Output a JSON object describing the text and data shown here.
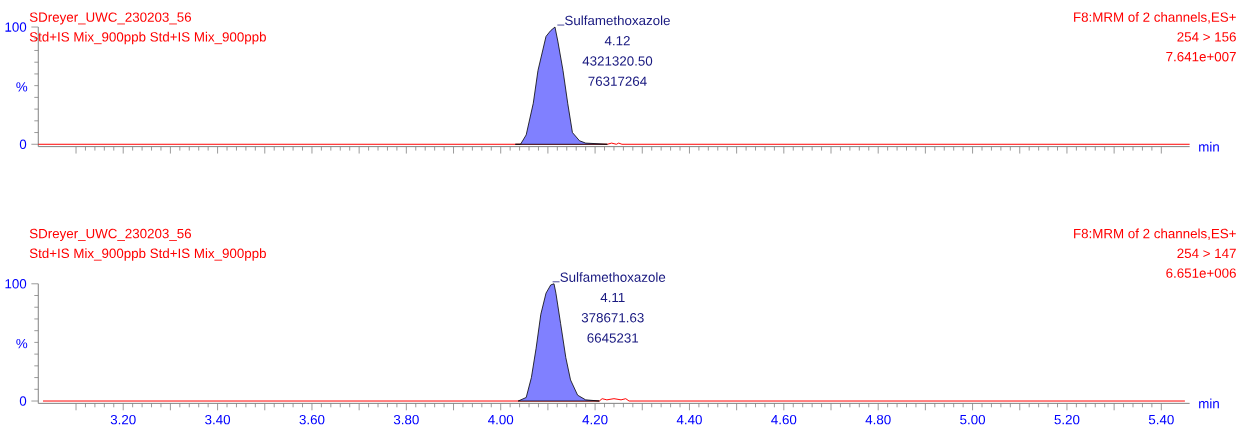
{
  "chart_data": [
    {
      "type": "area",
      "title": "SDreyer_UWC_230203_56",
      "subtitle": "Std+IS Mix_900ppb Std+IS Mix_900ppb",
      "xlabel": "min",
      "ylabel": "%",
      "tick_labels": "y",
      "annotations": [
        "F8:MRM of 2 channels,ES+",
        "254 > 156",
        "7.641e+007",
        {
          "text": "Sulfamethoxazole",
          "x": 4.12,
          "y": 100
        },
        "4.12",
        "4321320.50",
        "76317264"
      ],
      "xlim": [
        3.02,
        5.46
      ],
      "ylim": [
        -2,
        100
      ],
      "yticks": [
        0,
        100
      ],
      "xticks": [
        {
          "value": 3.1,
          "label": null
        },
        {
          "value": 3.2,
          "label": null
        },
        {
          "value": 3.3,
          "label": null
        },
        {
          "value": 3.4,
          "label": null
        },
        {
          "value": 3.5,
          "label": null
        },
        {
          "value": 3.6,
          "label": null
        },
        {
          "value": 3.7,
          "label": null
        },
        {
          "value": 3.8,
          "label": null
        },
        {
          "value": 3.9,
          "label": null
        },
        {
          "value": 4.0,
          "label": null
        },
        {
          "value": 4.1,
          "label": null
        },
        {
          "value": 4.2,
          "label": null
        },
        {
          "value": 4.3,
          "label": null
        },
        {
          "value": 4.4,
          "label": null
        },
        {
          "value": 4.5,
          "label": null
        },
        {
          "value": 4.6,
          "label": null
        },
        {
          "value": 4.7,
          "label": null
        },
        {
          "value": 4.8,
          "label": null
        },
        {
          "value": 4.9,
          "label": null
        },
        {
          "value": 5.0,
          "label": null
        },
        {
          "value": 5.1,
          "label": null
        },
        {
          "value": 5.2,
          "label": null
        },
        {
          "value": 5.3,
          "label": null
        },
        {
          "value": 5.4,
          "label": null
        }
      ],
      "series": [
        {
          "type": "line",
          "color": "#ff0000",
          "x": [
            3.02,
            4.226,
            4.235,
            4.245,
            4.25,
            4.257,
            4.265,
            5.46
          ],
          "values": [
            0,
            0,
            1,
            0,
            1,
            0,
            0,
            0
          ]
        },
        {
          "type": "area",
          "color": "#8080ff",
          "x": [
            4.031,
            4.042,
            4.054,
            4.069,
            4.079,
            4.096,
            4.106,
            4.115,
            4.121,
            4.132,
            4.142,
            4.152,
            4.167,
            4.18,
            4.226
          ],
          "values": [
            0,
            0,
            8,
            35,
            63,
            92,
            97,
            100,
            88,
            63,
            35,
            10,
            3,
            1,
            0
          ]
        }
      ]
    },
    {
      "type": "area",
      "title": "SDreyer_UWC_230203_56",
      "subtitle": "Std+IS Mix_900ppb Std+IS Mix_900ppb",
      "xlabel": "min",
      "ylabel": "%",
      "annotations": [
        "F8:MRM of 2 channels,ES+",
        "254 > 147",
        "6.651e+006",
        {
          "text": "Sulfamethoxazole",
          "x": 4.11,
          "y": 100
        },
        "4.11",
        "378671.63",
        "6645231"
      ],
      "xlim": [
        3.02,
        5.46
      ],
      "ylim": [
        -2,
        100
      ],
      "yticks": [
        0,
        100
      ],
      "xticks": [
        {
          "value": 3.1,
          "label": null
        },
        {
          "value": 3.2,
          "label": "3.20"
        },
        {
          "value": 3.3,
          "label": null
        },
        {
          "value": 3.4,
          "label": "3.40"
        },
        {
          "value": 3.5,
          "label": null
        },
        {
          "value": 3.6,
          "label": "3.60"
        },
        {
          "value": 3.7,
          "label": null
        },
        {
          "value": 3.8,
          "label": "3.80"
        },
        {
          "value": 3.9,
          "label": null
        },
        {
          "value": 4.0,
          "label": "4.00"
        },
        {
          "value": 4.1,
          "label": null
        },
        {
          "value": 4.2,
          "label": "4.20"
        },
        {
          "value": 4.3,
          "label": null
        },
        {
          "value": 4.4,
          "label": "4.40"
        },
        {
          "value": 4.5,
          "label": null
        },
        {
          "value": 4.6,
          "label": "4.60"
        },
        {
          "value": 4.7,
          "label": null
        },
        {
          "value": 4.8,
          "label": "4.80"
        },
        {
          "value": 4.9,
          "label": null
        },
        {
          "value": 5.0,
          "label": "5.00"
        },
        {
          "value": 5.1,
          "label": null
        },
        {
          "value": 5.2,
          "label": "5.20"
        },
        {
          "value": 5.3,
          "label": null
        },
        {
          "value": 5.4,
          "label": "5.40"
        }
      ],
      "series": [
        {
          "type": "line",
          "color": "#ff0000",
          "x": [
            3.03,
            4.209,
            4.215,
            4.225,
            4.24,
            4.255,
            4.265,
            4.272,
            5.45
          ],
          "values": [
            0,
            0,
            2,
            1,
            2,
            1,
            2,
            0,
            0
          ]
        },
        {
          "type": "area",
          "color": "#8080ff",
          "x": [
            4.037,
            4.054,
            4.065,
            4.075,
            4.085,
            4.096,
            4.106,
            4.113,
            4.117,
            4.127,
            4.138,
            4.148,
            4.163,
            4.18,
            4.209
          ],
          "values": [
            0,
            3,
            20,
            45,
            74,
            92,
            99,
            100,
            92,
            66,
            37,
            18,
            5,
            1,
            0
          ]
        }
      ]
    }
  ]
}
